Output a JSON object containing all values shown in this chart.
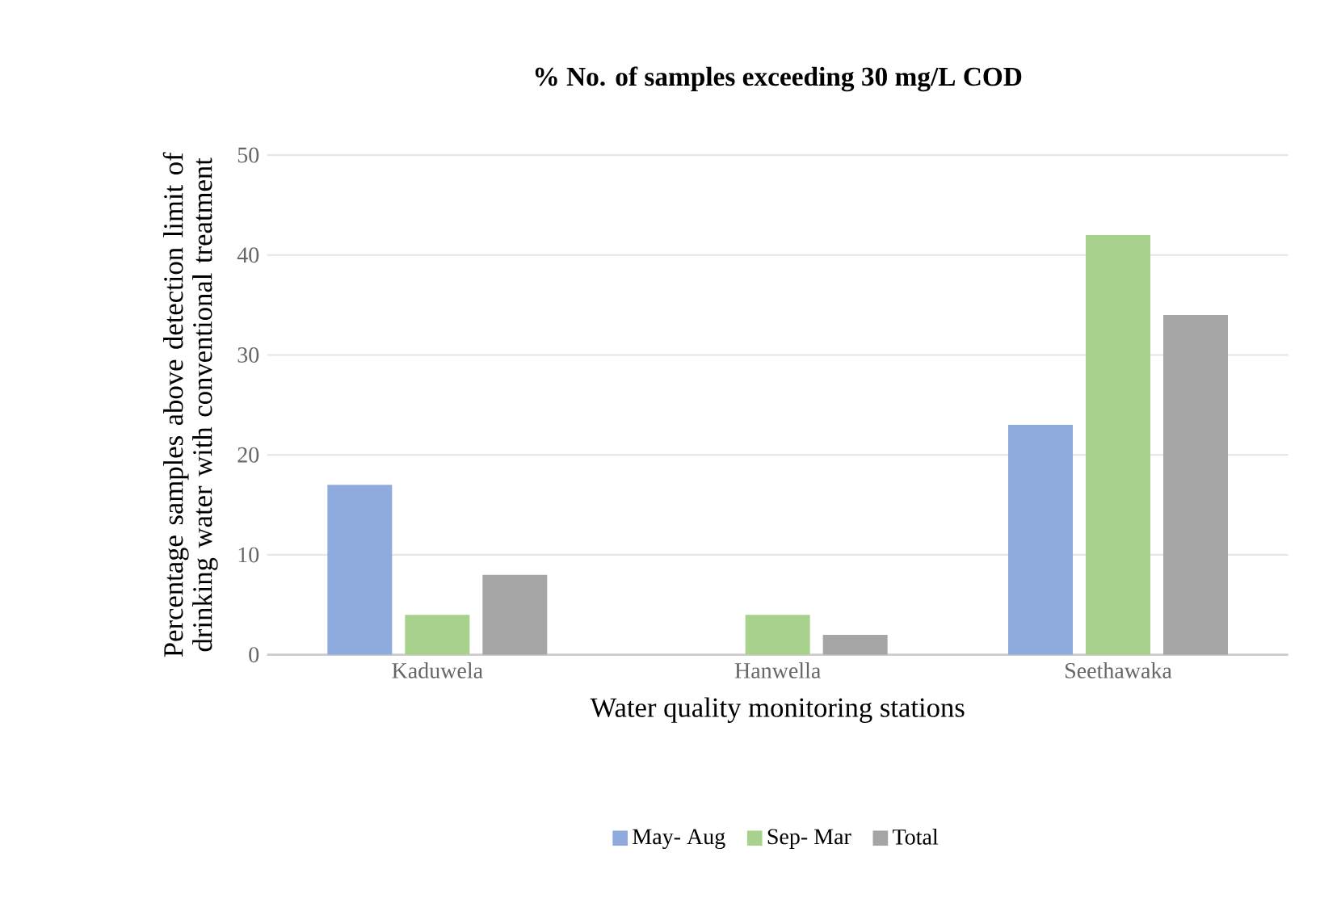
{
  "chart_data": {
    "type": "bar",
    "title": "% No. of samples exceeding 30 mg/L COD",
    "xlabel": "Water quality monitoring stations",
    "ylabel": "Percentage samples above detection limit of drinking water with conventional treatment",
    "categories": [
      "Kaduwela",
      "Hanwella",
      "Seethawaka"
    ],
    "series": [
      {
        "name": "May- Aug",
        "color": "#8faadc",
        "values": [
          17,
          0,
          23
        ]
      },
      {
        "name": "Sep- Mar",
        "color": "#a9d18e",
        "values": [
          4,
          4,
          42
        ]
      },
      {
        "name": "Total",
        "color": "#a5a5a5",
        "values": [
          8,
          2,
          34
        ]
      }
    ],
    "ylim": [
      0,
      50
    ],
    "yticks": [
      0,
      10,
      20,
      30,
      40,
      50
    ],
    "grid": "y",
    "legend": "bottom"
  }
}
